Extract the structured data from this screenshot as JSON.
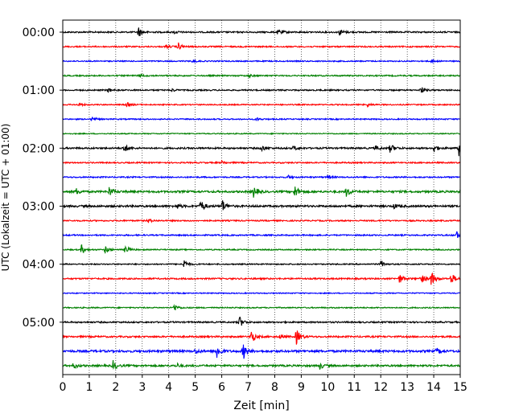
{
  "chart_data": {
    "type": "line",
    "xlabel": "Zeit  [min]",
    "ylabel": "UTC (Lokalzeit = UTC + 01:00)",
    "xlim": [
      0,
      15
    ],
    "x_ticks": [
      "0",
      "1",
      "2",
      "3",
      "4",
      "5",
      "6",
      "7",
      "8",
      "9",
      "10",
      "11",
      "12",
      "13",
      "14",
      "15"
    ],
    "x_grid": "dotted vertical lines at each minute",
    "row_interval_minutes": 15,
    "color_cycle": [
      "#000000",
      "#ff0000",
      "#0000ff",
      "#008000"
    ],
    "y_ticks": [
      {
        "label": "00:00",
        "row": 0
      },
      {
        "label": "01:00",
        "row": 4
      },
      {
        "label": "02:00",
        "row": 8
      },
      {
        "label": "03:00",
        "row": 12
      },
      {
        "label": "04:00",
        "row": 16
      },
      {
        "label": "05:00",
        "row": 20
      }
    ],
    "rows": [
      {
        "color": "#000000",
        "noise": 0.9,
        "events": [
          [
            2.85,
            7
          ],
          [
            4.2,
            2
          ],
          [
            8.1,
            2
          ],
          [
            8.2,
            2
          ],
          [
            10.45,
            4
          ]
        ]
      },
      {
        "color": "#ff0000",
        "noise": 0.8,
        "events": [
          [
            4.35,
            5
          ],
          [
            3.9,
            2
          ]
        ]
      },
      {
        "color": "#0000ff",
        "noise": 0.7,
        "events": [
          [
            4.9,
            2
          ],
          [
            13.9,
            2
          ]
        ]
      },
      {
        "color": "#008000",
        "noise": 0.8,
        "events": [
          [
            2.9,
            2
          ],
          [
            7.0,
            2
          ]
        ]
      },
      {
        "color": "#000000",
        "noise": 0.8,
        "events": [
          [
            1.7,
            3
          ],
          [
            4.1,
            2
          ],
          [
            13.5,
            5
          ]
        ]
      },
      {
        "color": "#ff0000",
        "noise": 0.7,
        "events": [
          [
            0.6,
            2
          ],
          [
            2.4,
            3
          ],
          [
            11.5,
            2
          ]
        ]
      },
      {
        "color": "#0000ff",
        "noise": 0.7,
        "events": [
          [
            1.1,
            3
          ],
          [
            7.3,
            2
          ]
        ]
      },
      {
        "color": "#008000",
        "noise": 0.6,
        "events": []
      },
      {
        "color": "#000000",
        "noise": 1.0,
        "events": [
          [
            2.3,
            6
          ],
          [
            7.5,
            4
          ],
          [
            8.7,
            3
          ],
          [
            11.8,
            3
          ],
          [
            12.35,
            6
          ],
          [
            14.0,
            5
          ],
          [
            14.95,
            9
          ]
        ]
      },
      {
        "color": "#ff0000",
        "noise": 0.8,
        "events": [
          [
            6.0,
            2
          ]
        ]
      },
      {
        "color": "#0000ff",
        "noise": 0.8,
        "events": [
          [
            8.5,
            2
          ],
          [
            10.0,
            2
          ]
        ]
      },
      {
        "color": "#008000",
        "noise": 1.2,
        "events": [
          [
            0.5,
            4
          ],
          [
            1.75,
            6
          ],
          [
            7.2,
            7
          ],
          [
            8.75,
            8
          ],
          [
            10.7,
            6
          ]
        ]
      },
      {
        "color": "#000000",
        "noise": 1.2,
        "events": [
          [
            5.2,
            8
          ],
          [
            6.0,
            9
          ],
          [
            4.3,
            3
          ],
          [
            12.5,
            3
          ]
        ]
      },
      {
        "color": "#ff0000",
        "noise": 0.8,
        "events": [
          [
            3.2,
            3
          ]
        ]
      },
      {
        "color": "#0000ff",
        "noise": 0.8,
        "events": [
          [
            14.85,
            5
          ]
        ]
      },
      {
        "color": "#008000",
        "noise": 0.7,
        "events": [
          [
            0.7,
            6
          ],
          [
            1.6,
            5
          ],
          [
            2.35,
            6
          ]
        ]
      },
      {
        "color": "#000000",
        "noise": 0.7,
        "events": [
          [
            4.55,
            7
          ],
          [
            12.0,
            5
          ]
        ]
      },
      {
        "color": "#ff0000",
        "noise": 0.9,
        "events": [
          [
            12.7,
            6
          ],
          [
            13.5,
            7
          ],
          [
            13.9,
            10
          ],
          [
            14.65,
            8
          ]
        ]
      },
      {
        "color": "#0000ff",
        "noise": 0.6,
        "events": []
      },
      {
        "color": "#008000",
        "noise": 0.7,
        "events": [
          [
            4.2,
            5
          ]
        ]
      },
      {
        "color": "#000000",
        "noise": 0.9,
        "events": [
          [
            6.65,
            8
          ]
        ]
      },
      {
        "color": "#ff0000",
        "noise": 1.0,
        "events": [
          [
            7.1,
            9
          ],
          [
            8.8,
            11
          ],
          [
            8.2,
            3
          ]
        ]
      },
      {
        "color": "#0000ff",
        "noise": 1.3,
        "events": [
          [
            5.8,
            10
          ],
          [
            6.8,
            11
          ],
          [
            5.0,
            3
          ],
          [
            14.1,
            4
          ]
        ]
      },
      {
        "color": "#008000",
        "noise": 1.1,
        "events": [
          [
            0.4,
            4
          ],
          [
            1.9,
            6
          ],
          [
            4.3,
            3
          ],
          [
            9.7,
            4
          ]
        ]
      }
    ]
  }
}
